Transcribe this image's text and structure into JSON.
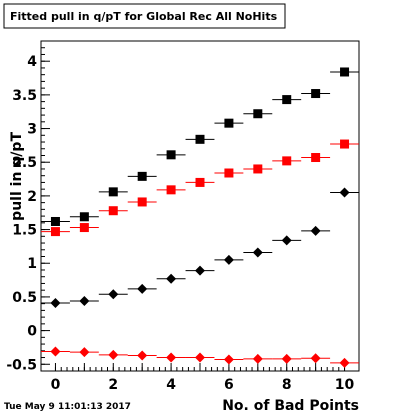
{
  "chart_data": {
    "type": "scatter",
    "title": "Fitted pull in q/pT for Global Rec All NoHits",
    "xlabel": "No. of Bad Points",
    "ylabel": "pull in q/pT",
    "xlim": [
      -0.5,
      10.5
    ],
    "ylim": [
      -0.6,
      4.3
    ],
    "x_ticks": [
      "0",
      "2",
      "4",
      "6",
      "8",
      "10"
    ],
    "y_ticks": [
      "-0.5",
      "0",
      "0.5",
      "1",
      "1.5",
      "2",
      "2.5",
      "3",
      "3.5",
      "4"
    ],
    "grid": false,
    "legend": "none",
    "series": [
      {
        "marker": "square",
        "color": "#000000",
        "x": [
          0,
          1,
          2,
          3,
          4,
          5,
          6,
          7,
          8,
          9,
          10
        ],
        "y": [
          1.62,
          1.69,
          2.06,
          2.29,
          2.61,
          2.84,
          3.08,
          3.22,
          3.43,
          3.52,
          3.84
        ]
      },
      {
        "marker": "square",
        "color": "#ff0000",
        "x": [
          0,
          1,
          2,
          3,
          4,
          5,
          6,
          7,
          8,
          9,
          10
        ],
        "y": [
          1.47,
          1.53,
          1.78,
          1.91,
          2.09,
          2.2,
          2.34,
          2.4,
          2.52,
          2.57,
          2.77
        ]
      },
      {
        "marker": "diamond",
        "color": "#000000",
        "x": [
          0,
          1,
          2,
          3,
          4,
          5,
          6,
          7,
          8,
          9,
          10
        ],
        "y": [
          0.41,
          0.44,
          0.54,
          0.62,
          0.77,
          0.89,
          1.05,
          1.16,
          1.34,
          1.48,
          2.05
        ]
      },
      {
        "marker": "diamond",
        "color": "#ff0000",
        "x": [
          0,
          1,
          2,
          3,
          4,
          5,
          6,
          7,
          8,
          9,
          10
        ],
        "y": [
          -0.31,
          -0.32,
          -0.36,
          -0.37,
          -0.4,
          -0.4,
          -0.43,
          -0.42,
          -0.42,
          -0.41,
          -0.48
        ]
      }
    ]
  },
  "footer": {
    "timestamp": "Tue May  9 11:01:13 2017"
  }
}
